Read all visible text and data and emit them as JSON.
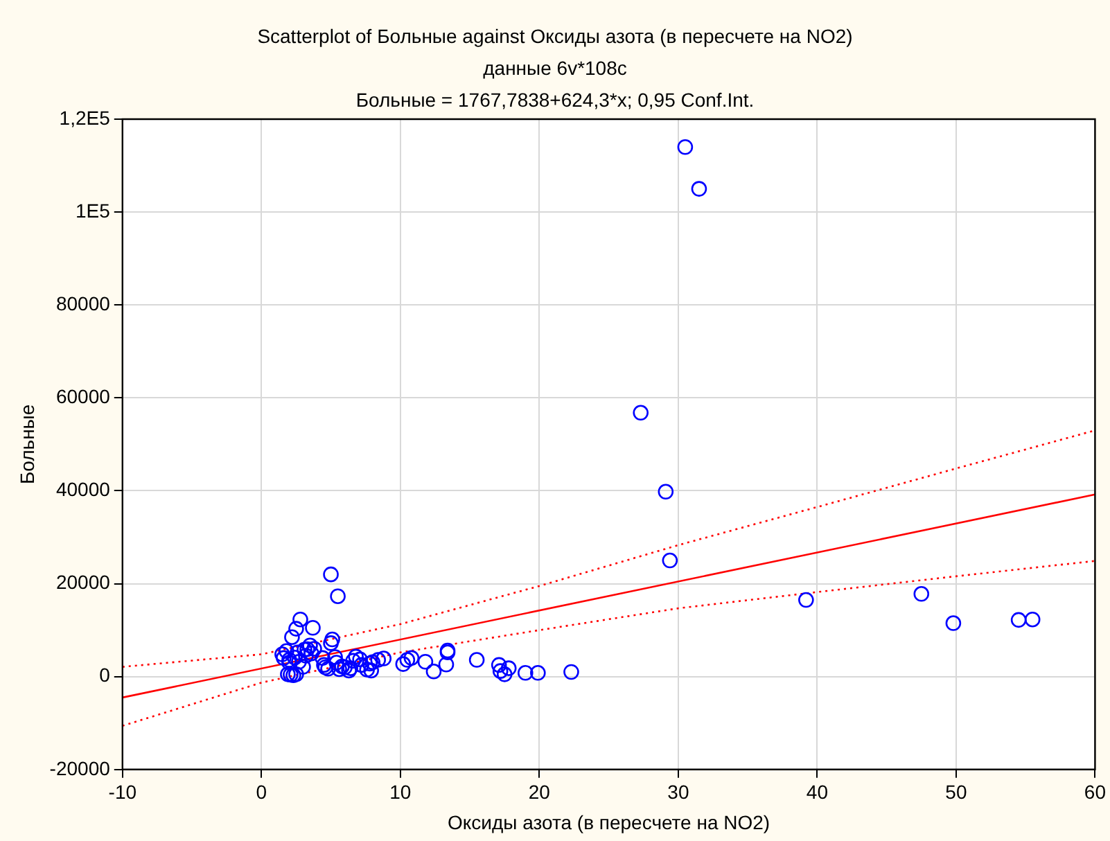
{
  "chart_data": {
    "type": "scatter",
    "title": "Scatterplot of Больные against Оксиды азота (в пересчете на NO2)",
    "subtitle": "данные 6v*108c",
    "annotations": [
      "Больные = 1767,7838+624,3*x; 0,95 Conf.Int."
    ],
    "xlabel": "Оксиды азота (в пересчете на NO2)",
    "ylabel": "Больные",
    "xlim": [
      -10,
      60
    ],
    "xticks": [
      -10,
      0,
      10,
      20,
      30,
      40,
      50,
      60
    ],
    "ylim": [
      -20000,
      120000
    ],
    "yticks": [
      -20000,
      0,
      20000,
      40000,
      60000,
      80000,
      {
        "value": 100000,
        "label": "1E5"
      },
      {
        "value": 120000,
        "label": "1,2E5"
      }
    ],
    "grid": true,
    "marker": "circle",
    "series": [
      {
        "color": "#0000ff",
        "x": [
          30.5,
          31.5,
          27.3,
          29.1,
          29.4,
          39.2,
          47.5,
          49.8,
          54.5,
          55.5,
          5,
          5.5,
          22.3,
          19.9,
          19,
          17.5,
          17.2,
          17.8,
          17.1,
          15.5,
          13.4,
          13.4,
          13.3,
          12.4,
          11.8,
          10.8,
          10.5,
          10.2,
          1.5,
          1.6,
          1.8,
          2,
          2.2,
          2.5,
          2.8,
          3.2,
          3.5,
          3.6,
          3.7,
          1.9,
          2.1,
          2.3,
          2.5,
          2,
          2.7,
          3,
          2.4,
          2.6,
          3.3,
          3.8,
          4.6,
          4.8,
          5,
          5.1,
          5.3,
          5.4,
          5.6,
          5.8,
          6.3,
          6.4,
          6.6,
          6.8,
          7.2,
          7.6,
          7.8,
          8,
          8.4,
          8.8,
          7.9,
          6,
          4.5,
          3.1,
          4.4,
          7.1
        ],
        "values": [
          114000,
          105000,
          56800,
          39800,
          25000,
          16500,
          17800,
          11500,
          12200,
          12300,
          22000,
          17300,
          1000,
          800,
          800,
          500,
          1200,
          1800,
          2500,
          3600,
          5600,
          5200,
          2600,
          1100,
          3200,
          4000,
          3600,
          2700,
          4800,
          4000,
          5500,
          3600,
          8500,
          10300,
          12300,
          4500,
          6700,
          5000,
          10500,
          500,
          400,
          300,
          500,
          3000,
          3200,
          2100,
          4100,
          5200,
          5900,
          6000,
          2000,
          1700,
          7200,
          8000,
          4200,
          3000,
          1600,
          2200,
          1300,
          1800,
          3400,
          4300,
          2500,
          1500,
          2800,
          3100,
          3600,
          3900,
          1300,
          2000,
          2500,
          5800,
          4000,
          3700
        ]
      },
      {
        "type": "line",
        "color": "#ff0000",
        "line_style": "solid",
        "marker": "none",
        "x": [
          -10,
          60
        ],
        "values": [
          -4500,
          39200
        ]
      },
      {
        "type": "line",
        "color": "#ff0000",
        "line_style": "dotted",
        "marker": "none",
        "x": [
          -10,
          0,
          10,
          20,
          30,
          40,
          50,
          60
        ],
        "values": [
          2100,
          4800,
          11300,
          19500,
          28300,
          36500,
          44800,
          53000
        ]
      },
      {
        "type": "line",
        "color": "#ff0000",
        "line_style": "dotted",
        "marker": "none",
        "x": [
          -10,
          0,
          10,
          20,
          30,
          40,
          50,
          60
        ],
        "values": [
          -10600,
          -1300,
          5200,
          10000,
          14700,
          18200,
          21600,
          24900
        ]
      }
    ]
  }
}
